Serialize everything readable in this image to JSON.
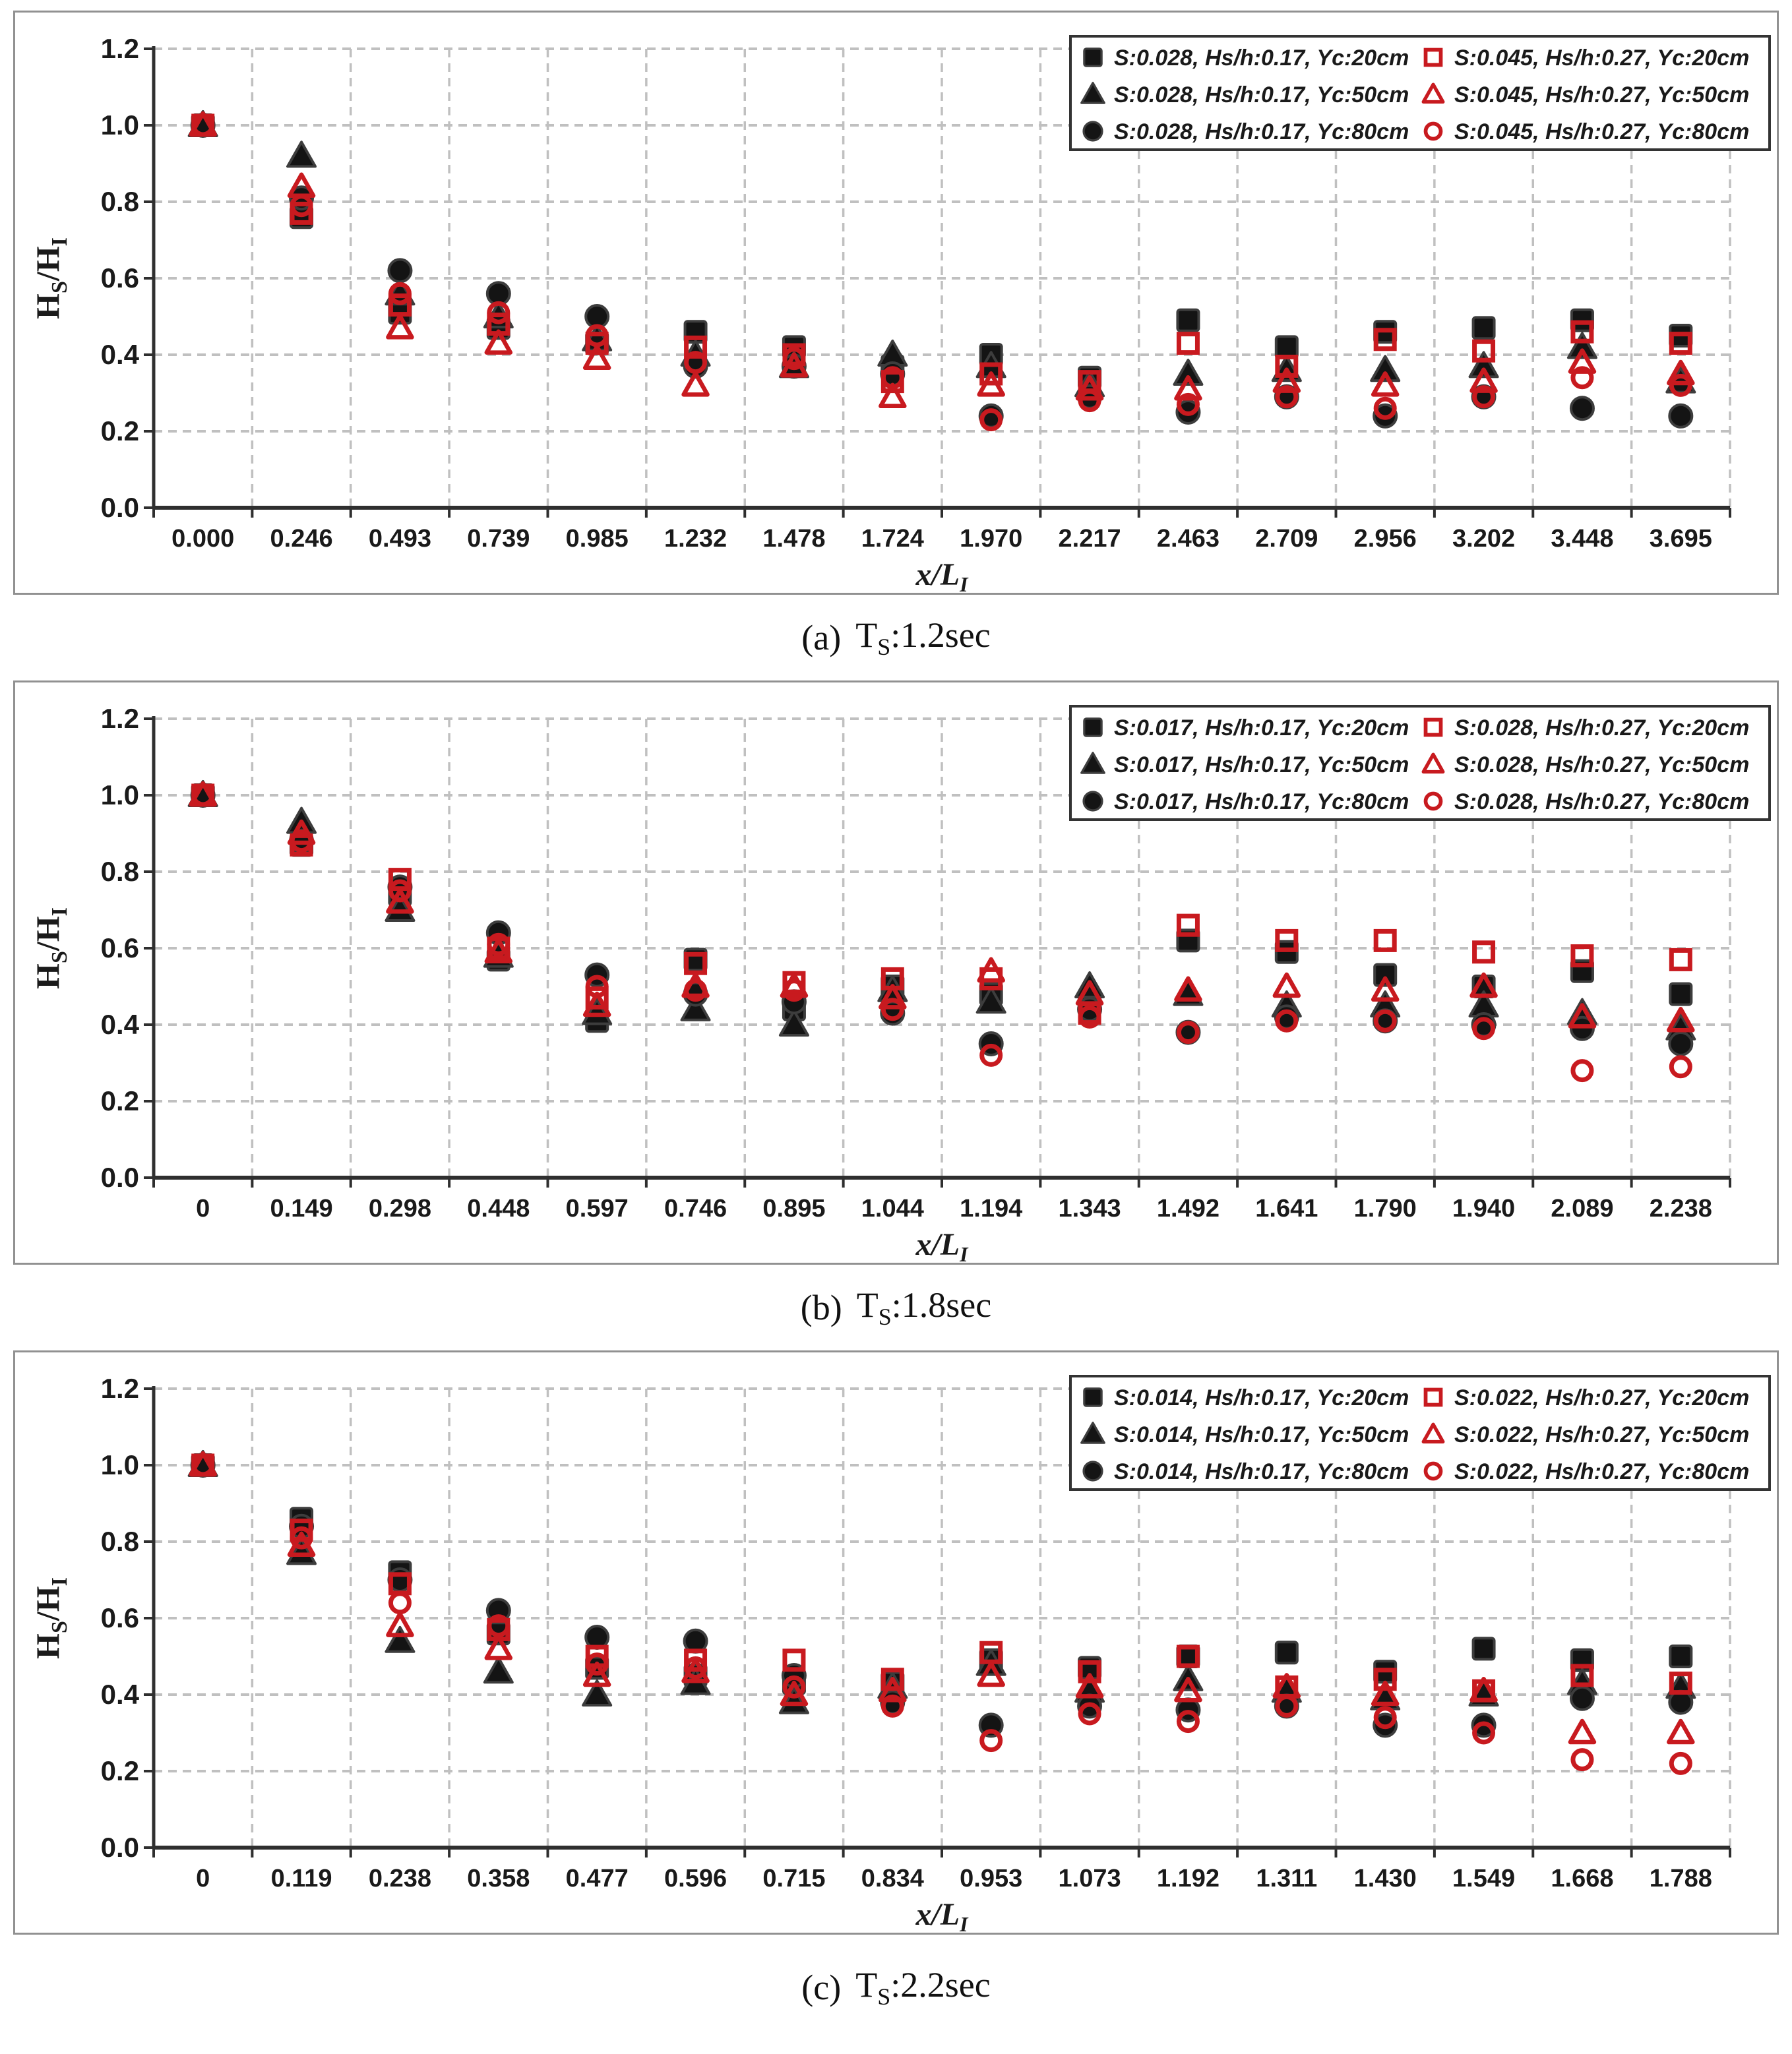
{
  "style_tokens": {
    "red_series": "#c81a1f",
    "black_series": "#141414",
    "black_edge": "#3d3d3d",
    "grid_color": "#c0c0c0",
    "axis_color": "#2f2f2f",
    "legend_border": "#333333",
    "panel_border": "#919191",
    "text_color": "#1a1a1a"
  },
  "chart_data": [
    {
      "type": "scatter",
      "caption": "(a) Ts:1.2sec",
      "caption_parts": {
        "index": "(a)",
        "t": "T",
        "sub": "S",
        "rest": ":1.2sec"
      },
      "xlabel": "x/L_I",
      "ylabel": "Hs/HI",
      "ylim": [
        0.0,
        1.2
      ],
      "grid": true,
      "legend_position": "top-right",
      "y_ticks": [
        "0.0",
        "0.2",
        "0.4",
        "0.6",
        "0.8",
        "1.0",
        "1.2"
      ],
      "x_ticks": [
        "0.000",
        "0.246",
        "0.493",
        "0.739",
        "0.985",
        "1.232",
        "1.478",
        "1.724",
        "1.970",
        "2.217",
        "2.463",
        "2.709",
        "2.956",
        "3.202",
        "3.448",
        "3.695"
      ],
      "series": [
        {
          "name": "S:0.028, Hs/h:0.17, Yc:20cm",
          "marker": "square",
          "style": "filled-black",
          "values": [
            1.0,
            0.76,
            0.51,
            0.47,
            0.43,
            0.46,
            0.42,
            0.37,
            0.4,
            0.34,
            0.49,
            0.42,
            0.46,
            0.47,
            0.49,
            0.45
          ]
        },
        {
          "name": "S:0.028, Hs/h:0.17, Yc:50cm",
          "marker": "triangle",
          "style": "filled-black",
          "values": [
            1.0,
            0.92,
            0.56,
            0.5,
            0.44,
            0.4,
            0.37,
            0.4,
            0.37,
            0.32,
            0.35,
            0.36,
            0.36,
            0.37,
            0.42,
            0.33
          ]
        },
        {
          "name": "S:0.028, Hs/h:0.17, Yc:80cm",
          "marker": "circle",
          "style": "filled-black",
          "values": [
            1.0,
            0.81,
            0.62,
            0.56,
            0.5,
            0.37,
            0.37,
            0.35,
            0.24,
            0.29,
            0.25,
            0.29,
            0.24,
            0.29,
            0.26,
            0.24
          ]
        },
        {
          "name": "S:0.045, Hs/h:0.27, Yc:20cm",
          "marker": "square",
          "style": "open-red",
          "values": [
            1.0,
            0.77,
            0.53,
            0.48,
            0.43,
            0.42,
            0.4,
            0.33,
            0.35,
            0.33,
            0.43,
            0.37,
            0.44,
            0.41,
            0.46,
            0.43
          ]
        },
        {
          "name": "S:0.045, Hs/h:0.27, Yc:50cm",
          "marker": "triangle",
          "style": "open-red",
          "values": [
            1.0,
            0.84,
            0.47,
            0.43,
            0.39,
            0.32,
            0.37,
            0.29,
            0.32,
            0.31,
            0.31,
            0.33,
            0.32,
            0.33,
            0.38,
            0.35
          ]
        },
        {
          "name": "S:0.045, Hs/h:0.27, Yc:80cm",
          "marker": "circle",
          "style": "open-red",
          "values": [
            1.0,
            0.79,
            0.56,
            0.51,
            0.45,
            0.38,
            0.39,
            0.34,
            0.23,
            0.28,
            0.27,
            0.29,
            0.26,
            0.29,
            0.34,
            0.32
          ]
        }
      ]
    },
    {
      "type": "scatter",
      "caption": "(b) Ts:1.8sec",
      "caption_parts": {
        "index": "(b)",
        "t": "T",
        "sub": "S",
        "rest": ":1.8sec"
      },
      "xlabel": "x/L_I",
      "ylabel": "Hs/HI",
      "ylim": [
        0.0,
        1.2
      ],
      "grid": true,
      "legend_position": "top-right",
      "y_ticks": [
        "0.0",
        "0.2",
        "0.4",
        "0.6",
        "0.8",
        "1.0",
        "1.2"
      ],
      "x_ticks": [
        "0",
        "0.149",
        "0.298",
        "0.448",
        "0.597",
        "0.746",
        "0.895",
        "1.044",
        "1.194",
        "1.343",
        "1.492",
        "1.641",
        "1.790",
        "1.940",
        "2.089",
        "2.238"
      ],
      "series": [
        {
          "name": "S:0.017, Hs/h:0.17, Yc:20cm",
          "marker": "square",
          "style": "filled-black",
          "values": [
            1.0,
            0.87,
            0.74,
            0.57,
            0.41,
            0.57,
            0.44,
            0.5,
            0.48,
            0.46,
            0.62,
            0.59,
            0.53,
            0.5,
            0.54,
            0.48
          ]
        },
        {
          "name": "S:0.017, Hs/h:0.17, Yc:50cm",
          "marker": "triangle",
          "style": "filled-black",
          "values": [
            1.0,
            0.93,
            0.7,
            0.58,
            0.43,
            0.44,
            0.4,
            0.49,
            0.46,
            0.5,
            0.48,
            0.45,
            0.45,
            0.45,
            0.43,
            0.39
          ]
        },
        {
          "name": "S:0.017, Hs/h:0.17, Yc:80cm",
          "marker": "circle",
          "style": "filled-black",
          "values": [
            1.0,
            0.88,
            0.76,
            0.64,
            0.53,
            0.48,
            0.46,
            0.43,
            0.35,
            0.44,
            0.38,
            0.42,
            0.41,
            0.4,
            0.39,
            0.35
          ]
        },
        {
          "name": "S:0.028, Hs/h:0.27, Yc:20cm",
          "marker": "square",
          "style": "open-red",
          "values": [
            1.0,
            0.87,
            0.78,
            0.6,
            0.47,
            0.56,
            0.51,
            0.52,
            0.52,
            0.43,
            0.66,
            0.62,
            0.62,
            0.59,
            0.58,
            0.57
          ]
        },
        {
          "name": "S:0.028, Hs/h:0.27, Yc:50cm",
          "marker": "triangle",
          "style": "open-red",
          "values": [
            1.0,
            0.9,
            0.72,
            0.59,
            0.45,
            0.5,
            0.5,
            0.47,
            0.54,
            0.48,
            0.49,
            0.5,
            0.49,
            0.5,
            0.42,
            0.41
          ]
        },
        {
          "name": "S:0.028, Hs/h:0.27, Yc:80cm",
          "marker": "circle",
          "style": "open-red",
          "values": [
            1.0,
            0.88,
            0.75,
            0.61,
            0.5,
            0.49,
            0.49,
            0.44,
            0.32,
            0.42,
            0.38,
            0.41,
            0.41,
            0.39,
            0.28,
            0.29
          ]
        }
      ]
    },
    {
      "type": "scatter",
      "caption": "(c) Ts:2.2sec",
      "caption_parts": {
        "index": "(c)",
        "t": "T",
        "sub": "S",
        "rest": ":2.2sec"
      },
      "xlabel": "x/L_I",
      "ylabel": "Hs/HI",
      "ylim": [
        0.0,
        1.2
      ],
      "grid": true,
      "legend_position": "top-right",
      "y_ticks": [
        "0.0",
        "0.2",
        "0.4",
        "0.6",
        "0.8",
        "1.0",
        "1.2"
      ],
      "x_ticks": [
        "0",
        "0.119",
        "0.238",
        "0.358",
        "0.477",
        "0.596",
        "0.715",
        "0.834",
        "0.953",
        "1.073",
        "1.192",
        "1.311",
        "1.430",
        "1.549",
        "1.668",
        "1.788"
      ],
      "series": [
        {
          "name": "S:0.014, Hs/h:0.17, Yc:20cm",
          "marker": "square",
          "style": "filled-black",
          "values": [
            1.0,
            0.86,
            0.72,
            0.56,
            0.47,
            0.45,
            0.43,
            0.43,
            0.49,
            0.47,
            0.5,
            0.51,
            0.46,
            0.52,
            0.49,
            0.5
          ]
        },
        {
          "name": "S:0.014, Hs/h:0.17, Yc:50cm",
          "marker": "triangle",
          "style": "filled-black",
          "values": [
            1.0,
            0.77,
            0.54,
            0.46,
            0.4,
            0.43,
            0.38,
            0.42,
            0.48,
            0.41,
            0.44,
            0.41,
            0.39,
            0.4,
            0.43,
            0.42
          ]
        },
        {
          "name": "S:0.014, Hs/h:0.17, Yc:80cm",
          "marker": "circle",
          "style": "filled-black",
          "values": [
            1.0,
            0.84,
            0.7,
            0.62,
            0.55,
            0.54,
            0.45,
            0.38,
            0.32,
            0.37,
            0.36,
            0.37,
            0.32,
            0.32,
            0.39,
            0.38
          ]
        },
        {
          "name": "S:0.022, Hs/h:0.27, Yc:20cm",
          "marker": "square",
          "style": "open-red",
          "values": [
            1.0,
            0.83,
            0.69,
            0.57,
            0.5,
            0.49,
            0.49,
            0.44,
            0.51,
            0.46,
            0.5,
            0.42,
            0.44,
            0.41,
            0.45,
            0.43
          ]
        },
        {
          "name": "S:0.022, Hs/h:0.27, Yc:50cm",
          "marker": "triangle",
          "style": "open-red",
          "values": [
            1.0,
            0.79,
            0.58,
            0.52,
            0.45,
            0.46,
            0.4,
            0.41,
            0.45,
            0.42,
            0.41,
            0.42,
            0.4,
            0.41,
            0.3,
            0.3
          ]
        },
        {
          "name": "S:0.022, Hs/h:0.27, Yc:80cm",
          "marker": "circle",
          "style": "open-red",
          "values": [
            1.0,
            0.81,
            0.64,
            0.58,
            0.48,
            0.47,
            0.42,
            0.37,
            0.28,
            0.35,
            0.33,
            0.37,
            0.34,
            0.3,
            0.23,
            0.22
          ]
        }
      ]
    }
  ]
}
